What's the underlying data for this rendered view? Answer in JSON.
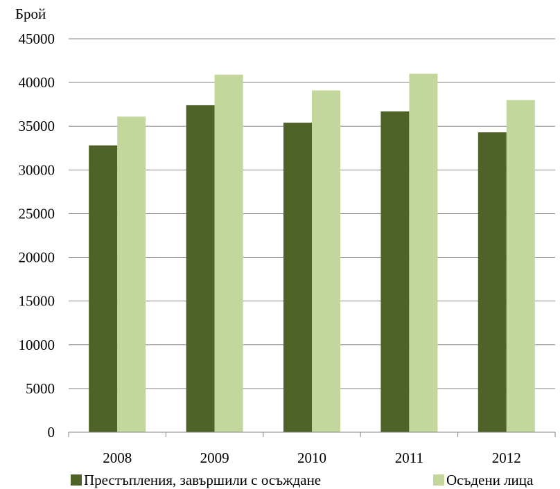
{
  "chart_data": {
    "type": "bar",
    "title": "",
    "ylabel": "Брой",
    "xlabel": "",
    "categories": [
      "2008",
      "2009",
      "2010",
      "2011",
      "2012"
    ],
    "series": [
      {
        "name": "Престъпления, завършили с осъждане",
        "color": "#4f6228",
        "values": [
          32800,
          37400,
          35400,
          36700,
          34300
        ]
      },
      {
        "name": "Осъдени лица",
        "color": "#c3d69b",
        "values": [
          36100,
          40900,
          39100,
          41000,
          38000
        ]
      }
    ],
    "ylim": [
      0,
      45000
    ],
    "yticks": [
      "0",
      "5000",
      "10000",
      "15000",
      "20000",
      "25000",
      "30000",
      "35000",
      "40000",
      "45000"
    ],
    "grid": true,
    "legend_position": "bottom"
  }
}
